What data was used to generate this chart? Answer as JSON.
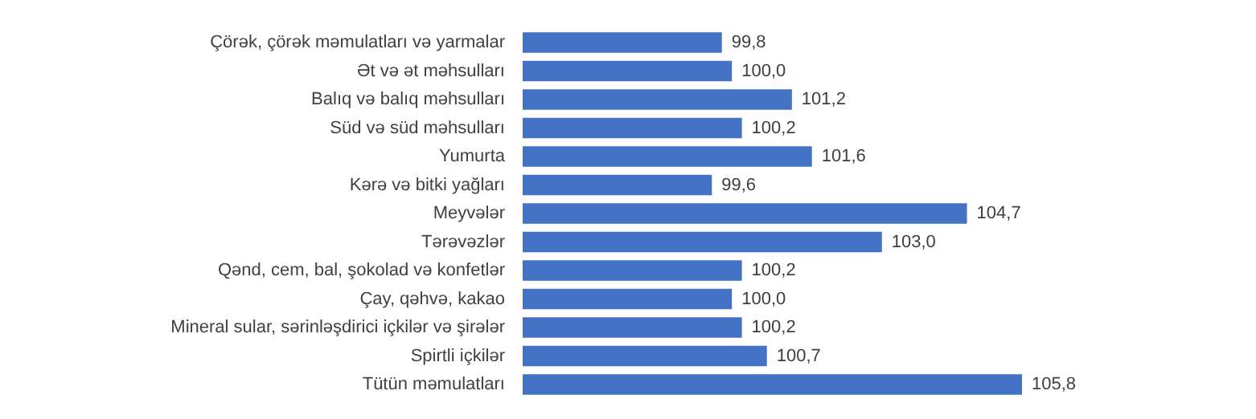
{
  "chart_data": {
    "type": "bar",
    "orientation": "horizontal",
    "tick_labels": "y",
    "categories": [
      "Çörək, çörək məmulatları və yarmalar",
      "Ət və ət məhsulları",
      "Balıq və balıq məhsulları",
      "Süd və süd məhsulları",
      "Yumurta",
      "Kərə və bitki yağları",
      "Meyvələr",
      "Tərəvəzlər",
      "Qənd, cem, bal, şokolad və konfetlər",
      "Çay, qəhvə, kakao",
      "Mineral sular, sərinləşdirici içkilər və şirələr",
      "Spirtli içkilər",
      "Tütün məmulatları"
    ],
    "values": [
      99.8,
      100.0,
      101.2,
      100.2,
      101.6,
      99.6,
      104.7,
      103.0,
      100.2,
      100.0,
      100.2,
      100.7,
      105.8
    ],
    "value_labels": [
      "99,8",
      "100,0",
      "101,2",
      "100,2",
      "101,6",
      "99,6",
      "104,7",
      "103,0",
      "100,2",
      "100,0",
      "100,2",
      "100,7",
      "105,8"
    ],
    "color": "#4472c4"
  }
}
